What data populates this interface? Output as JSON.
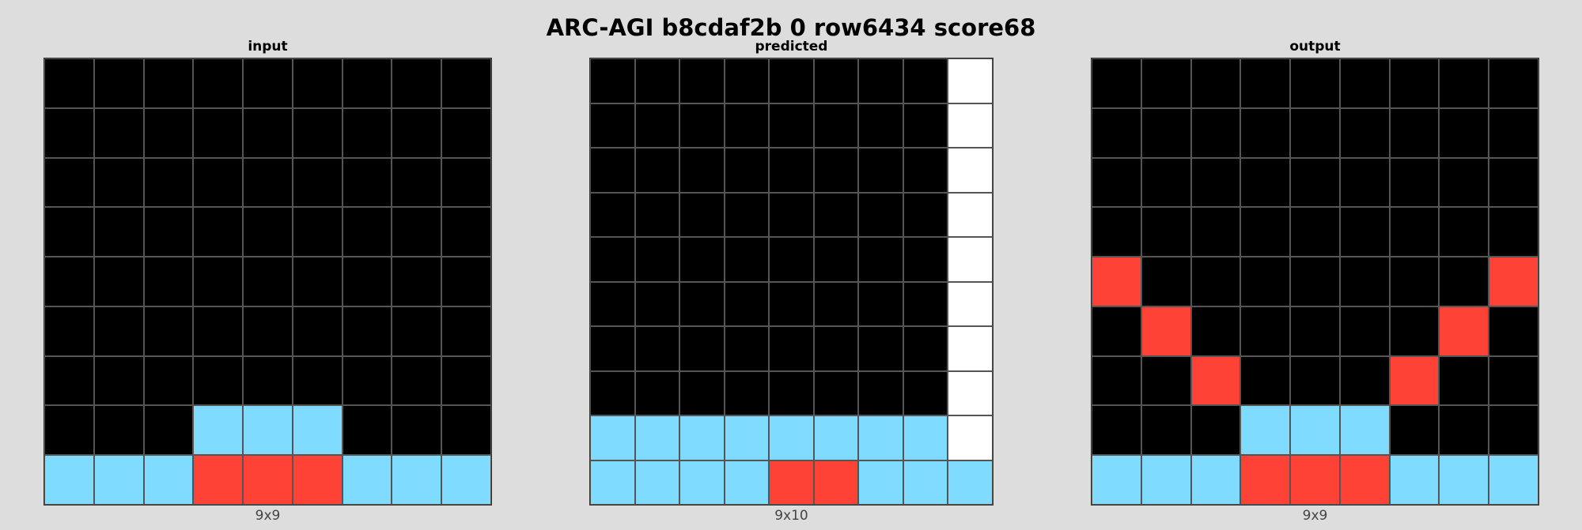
{
  "title": "ARC-AGI b8cdaf2b 0 row6434 score68",
  "palette": {
    "0": "#000000",
    "2": "#ff4136",
    "8": "#7fdbff",
    "w": "#ffffff"
  },
  "panels": [
    {
      "label": "input",
      "dims": "9x9",
      "rows": [
        "000000000",
        "000000000",
        "000000000",
        "000000000",
        "000000000",
        "000000000",
        "000000000",
        "000888000",
        "888222888"
      ]
    },
    {
      "label": "predicted",
      "dims": "9x10",
      "rows": [
        "00000000w",
        "00000000w",
        "00000000w",
        "00000000w",
        "00000000w",
        "00000000w",
        "00000000w",
        "00000000w",
        "88888888w",
        "888822888"
      ]
    },
    {
      "label": "output",
      "dims": "9x9",
      "rows": [
        "000000000",
        "000000000",
        "000000000",
        "000000000",
        "200000002",
        "020000020",
        "002000200",
        "000888000",
        "888222888"
      ]
    }
  ]
}
